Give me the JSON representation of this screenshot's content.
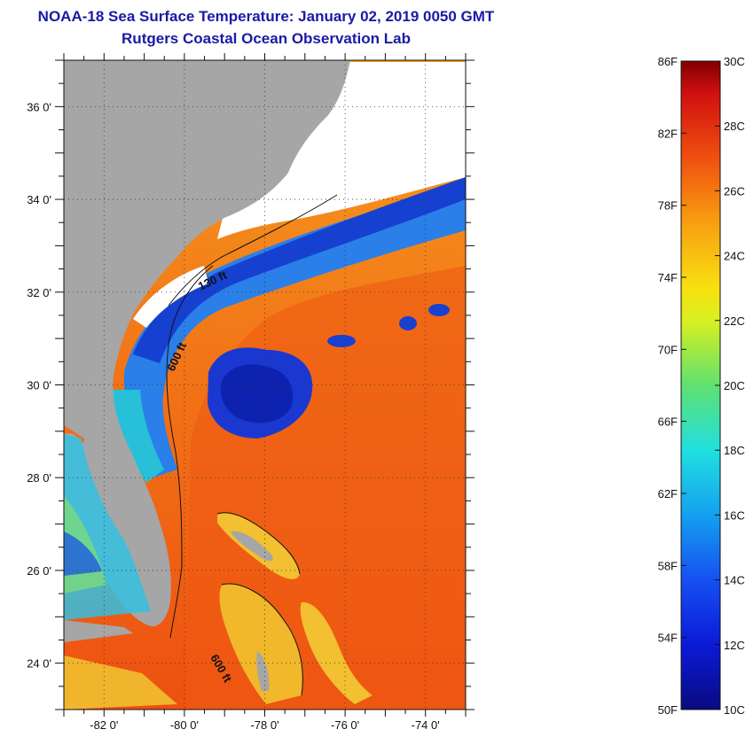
{
  "header": {
    "title": "NOAA-18 Sea Surface Temperature:  January 02, 2019 0050 GMT",
    "subtitle": "Rutgers Coastal Ocean Observation Lab"
  },
  "map": {
    "lon_range": [
      -83,
      -73
    ],
    "lat_range": [
      23,
      37
    ],
    "lon_ticks": [
      {
        "value": -82,
        "label": "-82 0'"
      },
      {
        "value": -80,
        "label": "-80 0'"
      },
      {
        "value": -78,
        "label": "-78 0'"
      },
      {
        "value": -76,
        "label": "-76 0'"
      },
      {
        "value": -74,
        "label": "-74 0'"
      }
    ],
    "lat_ticks": [
      {
        "value": 24,
        "label": "24 0'"
      },
      {
        "value": 26,
        "label": "26 0'"
      },
      {
        "value": 28,
        "label": "28 0'"
      },
      {
        "value": 30,
        "label": "30 0'"
      },
      {
        "value": 32,
        "label": "32 0'"
      },
      {
        "value": 34,
        "label": "34 0'"
      },
      {
        "value": 36,
        "label": "36 0'"
      }
    ],
    "contour_labels": [
      {
        "text": "130 ft"
      },
      {
        "text": "600 ft"
      },
      {
        "text": "600 ft"
      }
    ],
    "colors": {
      "land": "#a6a6a6",
      "cloud": "#ffffff",
      "warm": "#f04a10",
      "warm2": "#f46a10",
      "cool": "#1030d0"
    }
  },
  "colorbar": {
    "fahrenheit_labels": [
      "86F",
      "82F",
      "78F",
      "74F",
      "70F",
      "66F",
      "62F",
      "58F",
      "54F",
      "50F"
    ],
    "celsius_labels": [
      "30C",
      "28C",
      "26C",
      "24C",
      "22C",
      "20C",
      "18C",
      "16C",
      "14C",
      "12C",
      "10C"
    ],
    "range_c": [
      10,
      30
    ]
  }
}
